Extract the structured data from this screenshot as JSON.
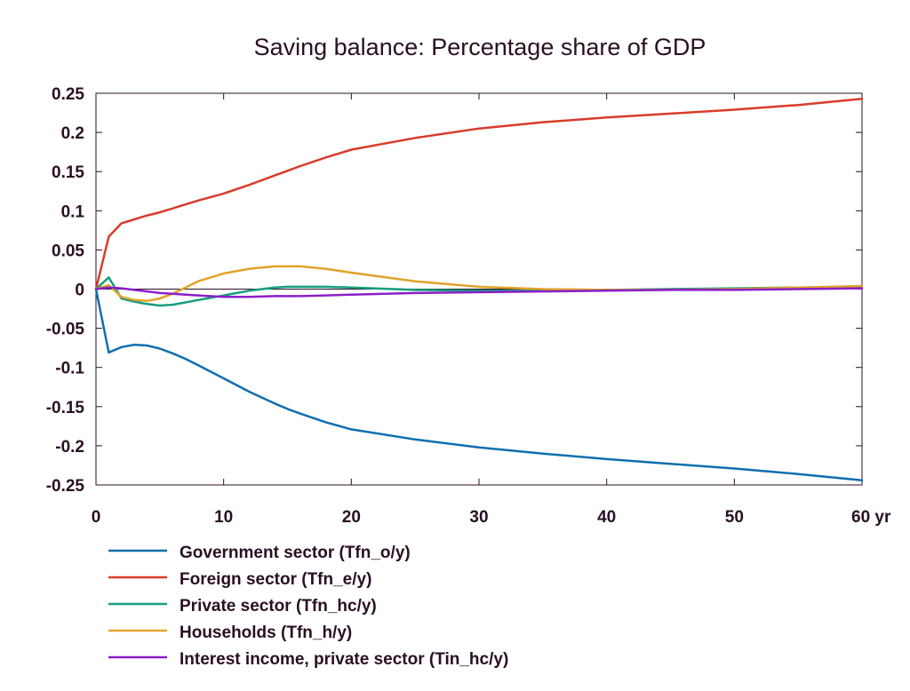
{
  "chart_data": {
    "type": "line",
    "title": "Saving balance: Percentage share of GDP",
    "x_unit": "yr",
    "xlim": [
      0,
      60
    ],
    "ylim": [
      -0.25,
      0.25
    ],
    "x_ticks": [
      0,
      10,
      20,
      30,
      40,
      50,
      60
    ],
    "x_tick_labels": [
      "0",
      "10",
      "20",
      "30",
      "40",
      "50",
      "60 yr"
    ],
    "y_ticks": [
      0.25,
      0.2,
      0.15,
      0.1,
      0.05,
      0,
      -0.05,
      -0.1,
      -0.15,
      -0.2,
      -0.25
    ],
    "y_tick_labels": [
      "0.25",
      "0.2",
      "0.15",
      "0.1",
      "0.05",
      "0",
      "-0.05",
      "-0.1",
      "-0.15",
      "-0.2",
      "-0.25"
    ],
    "grid": false,
    "zero_line": true,
    "legend_position": "bottom",
    "x": [
      0,
      1,
      2,
      3,
      4,
      5,
      6,
      7,
      8,
      10,
      12,
      14,
      15,
      16,
      18,
      20,
      25,
      30,
      35,
      40,
      45,
      50,
      55,
      60
    ],
    "series": [
      {
        "name": "Government sector (Tfn_o/y)",
        "color": "#0f6fae",
        "values": [
          0,
          -0.081,
          -0.074,
          -0.071,
          -0.072,
          -0.076,
          -0.082,
          -0.089,
          -0.097,
          -0.114,
          -0.131,
          -0.146,
          -0.153,
          -0.159,
          -0.17,
          -0.179,
          -0.192,
          -0.202,
          -0.21,
          -0.217,
          -0.223,
          -0.229,
          -0.236,
          -0.244
        ]
      },
      {
        "name": "Foreign sector (Tfn_e/y)",
        "color": "#d93b2b",
        "values": [
          0,
          0.067,
          0.084,
          0.089,
          0.094,
          0.098,
          0.103,
          0.108,
          0.113,
          0.122,
          0.133,
          0.145,
          0.151,
          0.157,
          0.168,
          0.178,
          0.193,
          0.205,
          0.213,
          0.219,
          0.224,
          0.229,
          0.235,
          0.243
        ]
      },
      {
        "name": "Private sector (Tfn_hc/y)",
        "color": "#179e7e",
        "values": [
          0,
          0.015,
          -0.012,
          -0.016,
          -0.019,
          -0.021,
          -0.02,
          -0.017,
          -0.014,
          -0.008,
          -0.002,
          0.002,
          0.003,
          0.003,
          0.003,
          0.002,
          -0.001,
          -0.002,
          -0.002,
          -0.001,
          0.0,
          0.001,
          0.002,
          0.003
        ]
      },
      {
        "name": "Households (Tfn_h/y)",
        "color": "#e0a32a",
        "values": [
          0,
          0.005,
          -0.01,
          -0.014,
          -0.015,
          -0.012,
          -0.006,
          0.002,
          0.01,
          0.02,
          0.026,
          0.029,
          0.029,
          0.029,
          0.026,
          0.021,
          0.01,
          0.003,
          0.0,
          -0.001,
          -0.001,
          0.0,
          0.002,
          0.004
        ]
      },
      {
        "name": "Interest income, private sector (Tin_hc/y)",
        "color": "#8b1fc9",
        "values": [
          0,
          0.002,
          0.001,
          -0.001,
          -0.003,
          -0.005,
          -0.006,
          -0.007,
          -0.008,
          -0.01,
          -0.01,
          -0.009,
          -0.009,
          -0.009,
          -0.008,
          -0.007,
          -0.005,
          -0.004,
          -0.003,
          -0.002,
          -0.001,
          -0.001,
          0.0,
          0.001
        ]
      }
    ]
  }
}
